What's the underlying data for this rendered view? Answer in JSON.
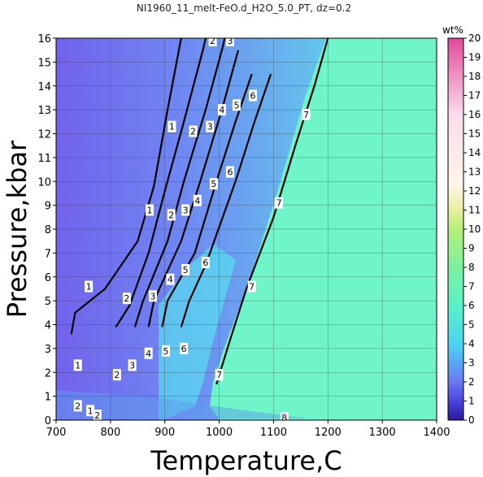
{
  "chart_data": {
    "type": "heatmap",
    "title": "NI1960_11_melt-FeO.d_H2O_5.0_PT, dz=0.2",
    "xlabel": "Temperature,C",
    "ylabel": "Pressure,kbar",
    "xlim": [
      700,
      1400
    ],
    "ylim": [
      0,
      16
    ],
    "x_ticks": [
      "700",
      "800",
      "900",
      "1000",
      "1100",
      "1200",
      "1300",
      "1400"
    ],
    "y_ticks": [
      "0",
      "1",
      "2",
      "3",
      "4",
      "5",
      "6",
      "7",
      "8",
      "9",
      "10",
      "11",
      "12",
      "13",
      "14",
      "15",
      "16"
    ],
    "grid": true,
    "colorbar": {
      "label": "wt%",
      "range": [
        0,
        20
      ],
      "ticks": [
        "0",
        "1",
        "2",
        "3",
        "4",
        "5",
        "6",
        "7",
        "8",
        "9",
        "10",
        "11",
        "12",
        "13",
        "14",
        "15",
        "16",
        "17",
        "18",
        "19",
        "20"
      ]
    },
    "plateau_value_wt": 7.0,
    "contours": [
      {
        "level": "1",
        "points": [
          [
            728,
            3.6
          ],
          [
            735,
            4.5
          ],
          [
            790,
            5.5
          ],
          [
            850,
            7.5
          ],
          [
            880,
            9.8
          ],
          [
            905,
            13.0
          ],
          [
            930,
            16.0
          ]
        ]
      },
      {
        "level": "2",
        "points": [
          [
            810,
            3.9
          ],
          [
            835,
            4.8
          ],
          [
            870,
            7.0
          ],
          [
            900,
            9.6
          ],
          [
            935,
            12.5
          ],
          [
            970,
            15.5
          ],
          [
            975,
            16.0
          ]
        ]
      },
      {
        "level": "3",
        "points": [
          [
            845,
            3.9
          ],
          [
            860,
            5.0
          ],
          [
            905,
            7.5
          ],
          [
            935,
            10.0
          ],
          [
            975,
            13.0
          ],
          [
            1005,
            15.5
          ],
          [
            1010,
            16.0
          ]
        ]
      },
      {
        "level": "4",
        "points": [
          [
            870,
            3.9
          ],
          [
            880,
            5.0
          ],
          [
            930,
            7.5
          ],
          [
            965,
            10.0
          ],
          [
            1005,
            13.0
          ],
          [
            1035,
            15.5
          ]
        ]
      },
      {
        "level": "5",
        "points": [
          [
            895,
            3.9
          ],
          [
            905,
            5.0
          ],
          [
            955,
            7.0
          ],
          [
            995,
            10.0
          ],
          [
            1030,
            12.5
          ],
          [
            1060,
            14.5
          ]
        ]
      },
      {
        "level": "6",
        "points": [
          [
            930,
            3.9
          ],
          [
            945,
            5.0
          ],
          [
            975,
            6.5
          ],
          [
            1030,
            10.0
          ],
          [
            1065,
            12.5
          ],
          [
            1095,
            14.5
          ]
        ]
      },
      {
        "level": "7",
        "points": [
          [
            995,
            1.5
          ],
          [
            1015,
            3.0
          ],
          [
            1050,
            5.5
          ],
          [
            1100,
            8.5
          ],
          [
            1140,
            11.5
          ],
          [
            1175,
            14.0
          ],
          [
            1200,
            16.0
          ]
        ]
      }
    ],
    "contour_labels": [
      {
        "text": "1",
        "x": 760,
        "y": 5.6
      },
      {
        "text": "1",
        "x": 872,
        "y": 8.8
      },
      {
        "text": "1",
        "x": 913,
        "y": 12.3
      },
      {
        "text": "2",
        "x": 830,
        "y": 5.1
      },
      {
        "text": "2",
        "x": 912,
        "y": 8.6
      },
      {
        "text": "2",
        "x": 952,
        "y": 12.1
      },
      {
        "text": "2",
        "x": 988,
        "y": 15.9
      },
      {
        "text": "3",
        "x": 878,
        "y": 5.2
      },
      {
        "text": "3",
        "x": 938,
        "y": 8.8
      },
      {
        "text": "3",
        "x": 983,
        "y": 12.3
      },
      {
        "text": "3",
        "x": 1020,
        "y": 15.9
      },
      {
        "text": "4",
        "x": 910,
        "y": 5.9
      },
      {
        "text": "4",
        "x": 960,
        "y": 9.2
      },
      {
        "text": "4",
        "x": 1005,
        "y": 13.0
      },
      {
        "text": "5",
        "x": 938,
        "y": 6.3
      },
      {
        "text": "5",
        "x": 990,
        "y": 9.9
      },
      {
        "text": "5",
        "x": 1032,
        "y": 13.2
      },
      {
        "text": "6",
        "x": 975,
        "y": 6.6
      },
      {
        "text": "6",
        "x": 1020,
        "y": 10.4
      },
      {
        "text": "6",
        "x": 1062,
        "y": 13.6
      },
      {
        "text": "7",
        "x": 1060,
        "y": 5.6
      },
      {
        "text": "7",
        "x": 1110,
        "y": 9.1
      },
      {
        "text": "7",
        "x": 1160,
        "y": 12.8
      },
      {
        "text": "1",
        "x": 740,
        "y": 2.3
      },
      {
        "text": "2",
        "x": 812,
        "y": 1.9
      },
      {
        "text": "3",
        "x": 840,
        "y": 2.3
      },
      {
        "text": "4",
        "x": 870,
        "y": 2.8
      },
      {
        "text": "5",
        "x": 902,
        "y": 2.9
      },
      {
        "text": "6",
        "x": 935,
        "y": 3.0
      },
      {
        "text": "7",
        "x": 1000,
        "y": 1.9
      },
      {
        "text": "2",
        "x": 740,
        "y": 0.6
      },
      {
        "text": "1",
        "x": 763,
        "y": 0.4
      },
      {
        "text": "2",
        "x": 776,
        "y": 0.2
      },
      {
        "text": "8",
        "x": 1120,
        "y": 0.1
      }
    ]
  }
}
